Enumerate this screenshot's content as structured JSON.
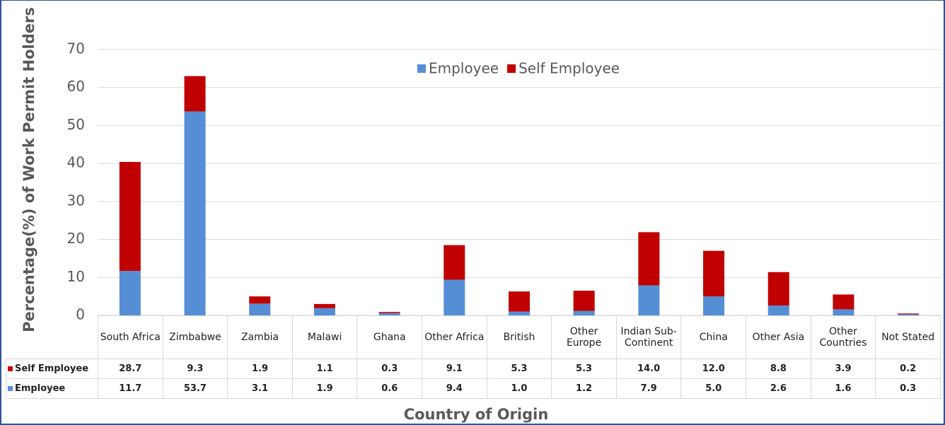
{
  "chart_data": {
    "type": "stacked_bar",
    "y_label": "Percentage(%) of Work Permit Holders",
    "x_label": "Country of Origin",
    "categories": [
      "South Africa",
      "Zimbabwe",
      "Zambia",
      "Malawi",
      "Ghana",
      "Other Africa",
      "British",
      "Other Europe",
      "Indian Sub-Continent",
      "China",
      "Other Asia",
      "Other Countries",
      "Not Stated"
    ],
    "series": [
      {
        "name": "Employee",
        "color": "#558ed5",
        "values": [
          11.7,
          53.7,
          3.1,
          1.9,
          0.6,
          9.4,
          1.0,
          1.2,
          7.9,
          5.0,
          2.6,
          1.6,
          0.3
        ],
        "value_labels": [
          "11.7",
          "53.7",
          "3.1",
          "1.9",
          "0.6",
          "9.4",
          "1.0",
          "1.2",
          "7.9",
          "5.0",
          "2.6",
          "1.6",
          "0.3"
        ]
      },
      {
        "name": "Self Employee",
        "color": "#c00000",
        "values": [
          28.7,
          9.3,
          1.9,
          1.1,
          0.3,
          9.1,
          5.3,
          5.3,
          14.0,
          12.0,
          8.8,
          3.9,
          0.2
        ],
        "value_labels": [
          "28.7",
          "9.3",
          "1.9",
          "1.1",
          "0.3",
          "9.1",
          "5.3",
          "5.3",
          "14.0",
          "12.0",
          "8.8",
          "3.9",
          "0.2"
        ]
      }
    ],
    "ylim": [
      0,
      70
    ],
    "yticks": [
      0,
      10,
      20,
      30,
      40,
      50,
      60,
      70
    ],
    "grid": true,
    "legend": "top"
  }
}
